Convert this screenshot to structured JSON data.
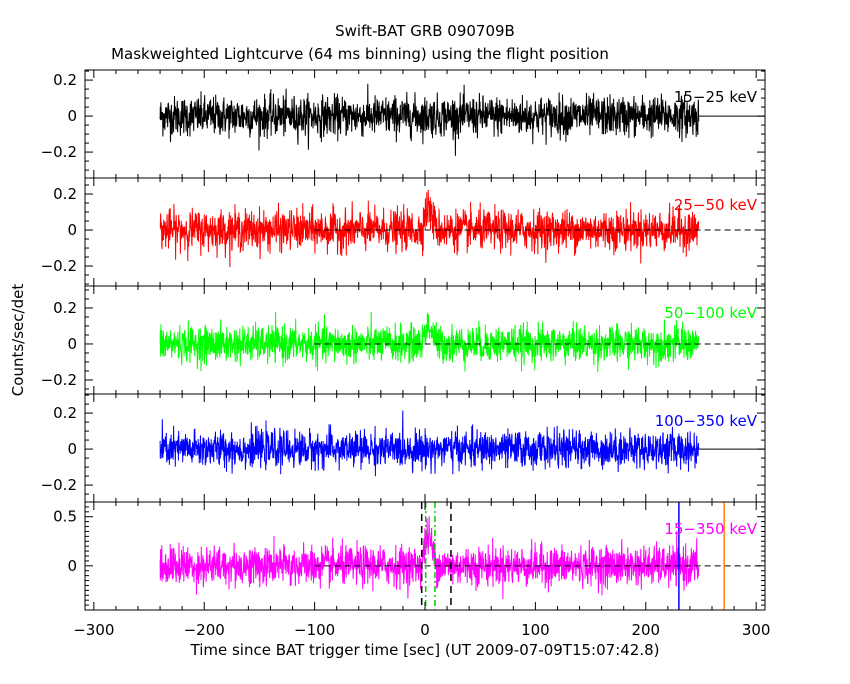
{
  "chart_data": {
    "type": "line",
    "title": "Swift-BAT GRB 090709B",
    "subtitle": "Maskweighted Lightcurve (64 ms binning) using the flight position",
    "xlabel": "Time since BAT trigger time [sec] (UT 2009-07-09T15:07:42.8)",
    "ylabel": "Counts/sec/det",
    "xlim": [
      -308,
      308
    ],
    "xticks": [
      -300,
      -200,
      -100,
      0,
      100,
      200,
      300
    ],
    "x_tick_labels": [
      "−300",
      "−200",
      "−100",
      "0",
      "100",
      "200",
      "300"
    ],
    "bin_size_sec": 0.064,
    "data_time_range": [
      -240,
      248
    ],
    "grid": false,
    "panels": [
      {
        "name": "15-25 keV",
        "label": "15−25 keV",
        "color": "#000000",
        "ylim": [
          -0.344,
          0.256
        ],
        "yticks": [
          -0.2,
          0,
          0.2
        ],
        "ytick_labels": [
          "−0.2",
          "0",
          "0.2"
        ],
        "noise_sigma": 0.055,
        "burst_peak": 0.0,
        "zero_line": "solid-after-data"
      },
      {
        "name": "25-50 keV",
        "label": "25−50 keV",
        "color": "#ff0000",
        "ylim": [
          -0.311,
          0.289
        ],
        "yticks": [
          -0.2,
          0,
          0.2
        ],
        "ytick_labels": [
          "−0.2",
          "0",
          "0.2"
        ],
        "noise_sigma": 0.055,
        "burst_peak": 0.12,
        "zero_line": "dashed"
      },
      {
        "name": "50-100 keV",
        "label": "50−100 keV",
        "color": "#00ff00",
        "ylim": [
          -0.278,
          0.322
        ],
        "yticks": [
          -0.2,
          0,
          0.2
        ],
        "ytick_labels": [
          "−0.2",
          "0",
          "0.2"
        ],
        "noise_sigma": 0.05,
        "burst_peak": 0.1,
        "zero_line": "dashed"
      },
      {
        "name": "100-350 keV",
        "label": "100−350 keV",
        "color": "#0000ff",
        "ylim": [
          -0.294,
          0.306
        ],
        "yticks": [
          -0.2,
          0,
          0.2
        ],
        "ytick_labels": [
          "−0.2",
          "0",
          "0.2"
        ],
        "noise_sigma": 0.05,
        "burst_peak": 0.0,
        "zero_line": "solid-after-data"
      },
      {
        "name": "15-350 keV",
        "label": "15−350 keV",
        "color": "#ff00ff",
        "ylim": [
          -0.45,
          0.65
        ],
        "yticks": [
          0,
          0.5
        ],
        "ytick_labels": [
          "0",
          "0.5"
        ],
        "noise_sigma": 0.1,
        "burst_peak": 0.3,
        "zero_line": "dashed",
        "markers": [
          {
            "t": -3,
            "color": "#000000",
            "style": "dashed"
          },
          {
            "t": 23.5,
            "color": "#000000",
            "style": "dashed"
          },
          {
            "t": 0.6,
            "color": "#00cc00",
            "style": "dashdot"
          },
          {
            "t": 9,
            "color": "#00cc00",
            "style": "dashdot"
          },
          {
            "t": 230,
            "color": "#0000ff",
            "style": "solid"
          },
          {
            "t": 271,
            "color": "#ff8000",
            "style": "solid"
          }
        ]
      }
    ]
  }
}
